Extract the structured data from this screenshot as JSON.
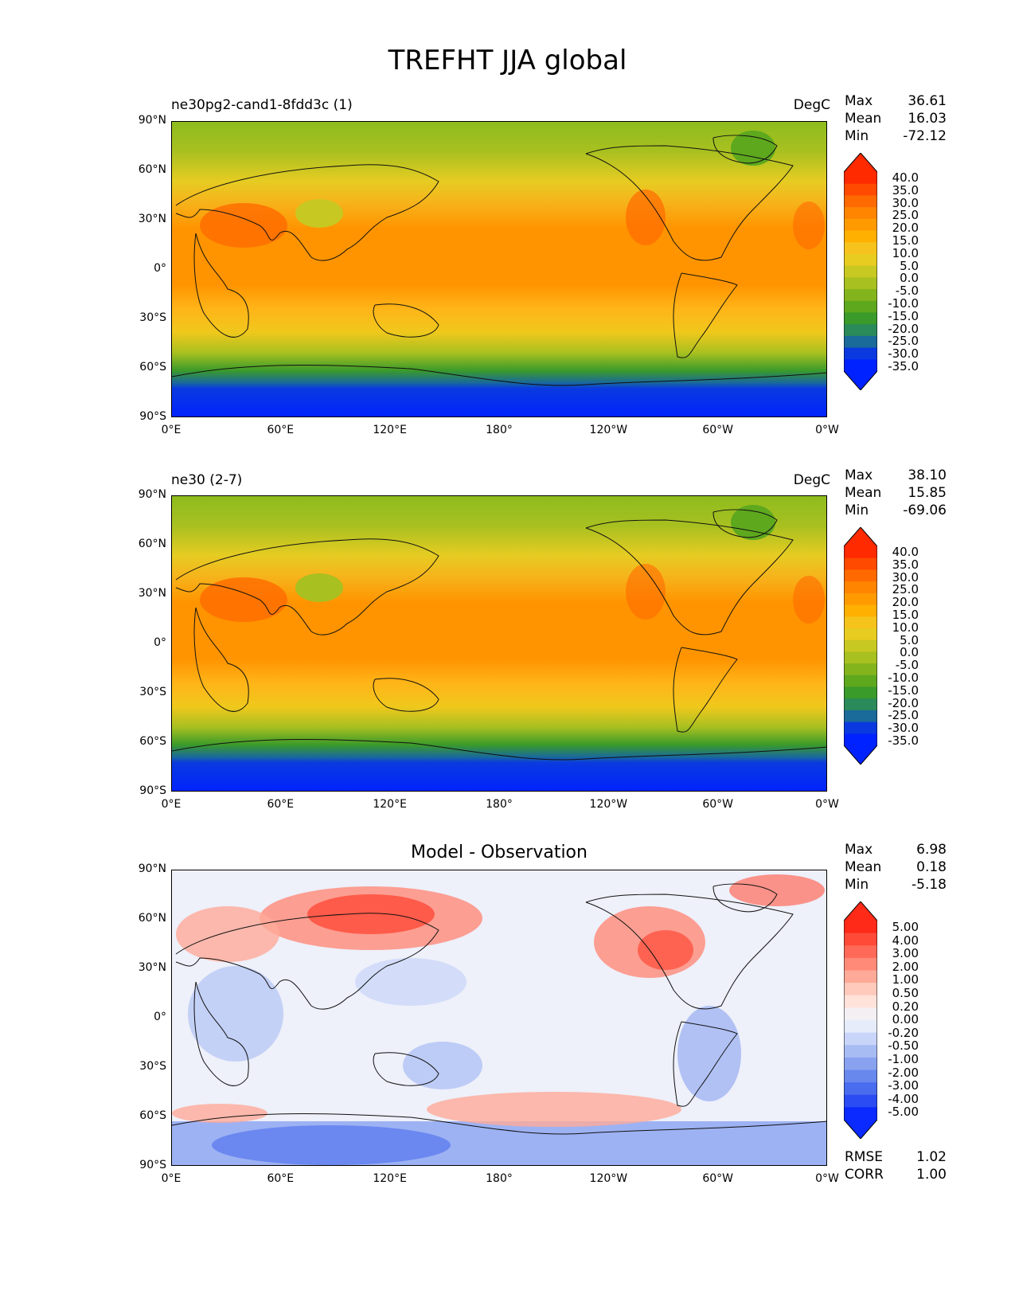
{
  "title": "TREFHT JJA global",
  "panels": [
    {
      "label_left": "ne30pg2-cand1-8fdd3c (1)",
      "label_right": "DegC",
      "stats": [
        {
          "name": "Max",
          "value": "36.61"
        },
        {
          "name": "Mean",
          "value": "16.03"
        },
        {
          "name": "Min",
          "value": "-72.12"
        }
      ]
    },
    {
      "label_left": "ne30 (2-7)",
      "label_right": "DegC",
      "stats": [
        {
          "name": "Max",
          "value": "38.10"
        },
        {
          "name": "Mean",
          "value": "15.85"
        },
        {
          "name": "Min",
          "value": "-69.06"
        }
      ]
    },
    {
      "center_title": "Model - Observation",
      "stats": [
        {
          "name": "Max",
          "value": "6.98"
        },
        {
          "name": "Mean",
          "value": "0.18"
        },
        {
          "name": "Min",
          "value": "-5.18"
        }
      ],
      "extra_stats": [
        {
          "name": "RMSE",
          "value": "1.02"
        },
        {
          "name": "CORR",
          "value": "1.00"
        }
      ]
    }
  ],
  "y_ticks": [
    "90°N",
    "60°N",
    "30°N",
    "0°",
    "30°S",
    "60°S",
    "90°S"
  ],
  "x_ticks": [
    "0°E",
    "60°E",
    "120°E",
    "180°",
    "120°W",
    "60°W",
    "0°W"
  ],
  "colorbar_temp": {
    "labels": [
      "40.0",
      "35.0",
      "30.0",
      "25.0",
      "20.0",
      "15.0",
      "10.0",
      "5.0",
      "0.0",
      "-5.0",
      "-10.0",
      "-15.0",
      "-20.0",
      "-25.0",
      "-30.0",
      "-35.0"
    ],
    "colors": [
      "#ff2a00",
      "#ff4a00",
      "#ff6a00",
      "#ff8400",
      "#ff9a00",
      "#ffb000",
      "#f6c21c",
      "#e8cc20",
      "#c8c822",
      "#a8c020",
      "#84b41c",
      "#5ea81e",
      "#3a9a2a",
      "#2a8a5a",
      "#1a6a9a",
      "#0a3adf",
      "#0022ff"
    ]
  },
  "colorbar_diff": {
    "labels": [
      "5.00",
      "4.00",
      "3.00",
      "2.00",
      "1.00",
      "0.50",
      "0.20",
      "0.00",
      "-0.20",
      "-0.50",
      "-1.00",
      "-2.00",
      "-3.00",
      "-4.00",
      "-5.00"
    ],
    "colors": [
      "#ff2a18",
      "#ff4a38",
      "#ff6a58",
      "#ff8a78",
      "#ffaa98",
      "#ffcabc",
      "#ffe2da",
      "#f3f0f4",
      "#e6ecfa",
      "#c8d4f8",
      "#a8bcf4",
      "#88a2f0",
      "#6888ee",
      "#4a6cee",
      "#2a4cf2",
      "#0a2aff"
    ]
  }
}
